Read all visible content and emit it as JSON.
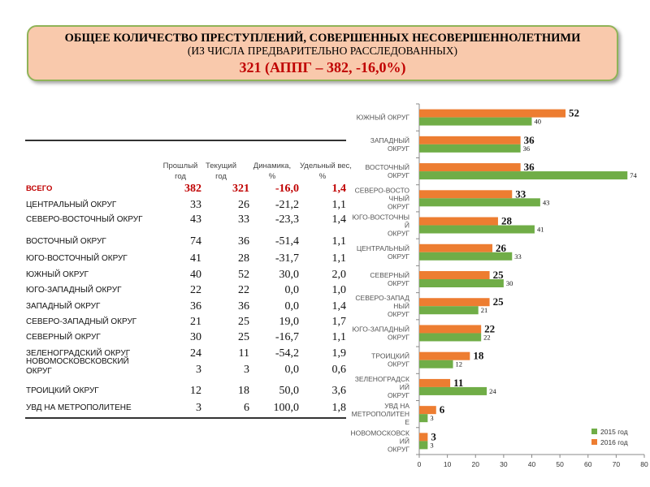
{
  "title": {
    "line1": "ОБЩЕЕ КОЛИЧЕСТВО ПРЕСТУПЛЕНИЙ, СОВЕРШЕННЫХ НЕСОВЕРШЕННОЛЕТНИМИ",
    "line2": "(ИЗ ЧИСЛА ПРЕДВАРИТЕЛЬНО РАССЛЕДОВАННЫХ)",
    "line3": "321 (АППГ – 382, -16,0%)"
  },
  "table": {
    "headers": [
      "Прошлый год",
      "Текущий год",
      "Динамика, %",
      "Удельный вес, %"
    ],
    "rows": [
      {
        "label": "ВСЕГО",
        "prev": "382",
        "curr": "321",
        "dyn": "-16,0",
        "share": "1,4"
      },
      {
        "label": "ЦЕНТРАЛЬНЫЙ ОКРУГ",
        "prev": "33",
        "curr": "26",
        "dyn": "-21,2",
        "share": "1,1"
      },
      {
        "label": "СЕВЕРО-ВОСТОЧНЫЙ ОКРУГ",
        "prev": "43",
        "curr": "33",
        "dyn": "-23,3",
        "share": "1,4"
      },
      {
        "label": "ВОСТОЧНЫЙ ОКРУГ",
        "prev": "74",
        "curr": "36",
        "dyn": "-51,4",
        "share": "1,1"
      },
      {
        "label": "ЮГО-ВОСТОЧНЫЙ ОКРУГ",
        "prev": "41",
        "curr": "28",
        "dyn": "-31,7",
        "share": "1,1"
      },
      {
        "label": "ЮЖНЫЙ ОКРУГ",
        "prev": "40",
        "curr": "52",
        "dyn": "30,0",
        "share": "2,0"
      },
      {
        "label": "ЮГО-ЗАПАДНЫЙ ОКРУГ",
        "prev": "22",
        "curr": "22",
        "dyn": "0,0",
        "share": "1,0"
      },
      {
        "label": "ЗАПАДНЫЙ ОКРУГ",
        "prev": "36",
        "curr": "36",
        "dyn": "0,0",
        "share": "1,4"
      },
      {
        "label": "СЕВЕРО-ЗАПАДНЫЙ ОКРУГ",
        "prev": "21",
        "curr": "25",
        "dyn": "19,0",
        "share": "1,7"
      },
      {
        "label": "СЕВЕРНЫЙ ОКРУГ",
        "prev": "30",
        "curr": "25",
        "dyn": "-16,7",
        "share": "1,1"
      },
      {
        "label": "ЗЕЛЕНОГРАДСКИЙ ОКРУГ",
        "prev": "24",
        "curr": "11",
        "dyn": "-54,2",
        "share": "1,9"
      },
      {
        "label": "НОВОМОСКОВСКОВСКИЙ ОКРУГ",
        "prev": "3",
        "curr": "3",
        "dyn": "0,0",
        "share": "0,6"
      },
      {
        "label": "ТРОИЦКИЙ ОКРУГ",
        "prev": "12",
        "curr": "18",
        "dyn": "50,0",
        "share": "3,6"
      },
      {
        "label": "УВД НА МЕТРОПОЛИТЕНЕ",
        "prev": "3",
        "curr": "6",
        "dyn": "100,0",
        "share": "1,8"
      }
    ]
  },
  "chart_data": {
    "type": "bar",
    "orientation": "horizontal",
    "categories": [
      "ЮЖНЫЙ ОКРУГ",
      "ЗАПАДНЫЙ ОКРУГ",
      "ВОСТОЧНЫЙ ОКРУГ",
      "СЕВЕРО-ВОСТОЧНЫЙ ОКРУГ",
      "ЮГО-ВОСТОЧНЫЙ ОКРУГ",
      "ЦЕНТРАЛЬНЫЙ ОКРУГ",
      "СЕВЕРНЫЙ ОКРУГ",
      "СЕВЕРО-ЗАПАДНЫЙ ОКРУГ",
      "ЮГО-ЗАПАДНЫЙ ОКРУГ",
      "ТРОИЦКИЙ ОКРУГ",
      "ЗЕЛЕНОГРАДСКИЙ ОКРУГ",
      "УВД НА МЕТРОПОЛИТЕНЕ",
      "НОВОМОСКОВСКИЙ ОКРУГ"
    ],
    "series": [
      {
        "name": "2016 год",
        "color": "#ed7d31",
        "values": [
          52,
          36,
          36,
          33,
          28,
          26,
          25,
          25,
          22,
          18,
          11,
          6,
          3
        ]
      },
      {
        "name": "2015 год",
        "color": "#70ad47",
        "values": [
          40,
          36,
          74,
          43,
          41,
          33,
          30,
          21,
          22,
          12,
          24,
          3,
          3
        ]
      }
    ],
    "xlim": [
      0,
      80
    ],
    "xticks": [
      0,
      10,
      20,
      30,
      40,
      50,
      60,
      70,
      80
    ],
    "legend": [
      "2015 год",
      "2016 год"
    ],
    "legend_position": "bottom-right"
  }
}
